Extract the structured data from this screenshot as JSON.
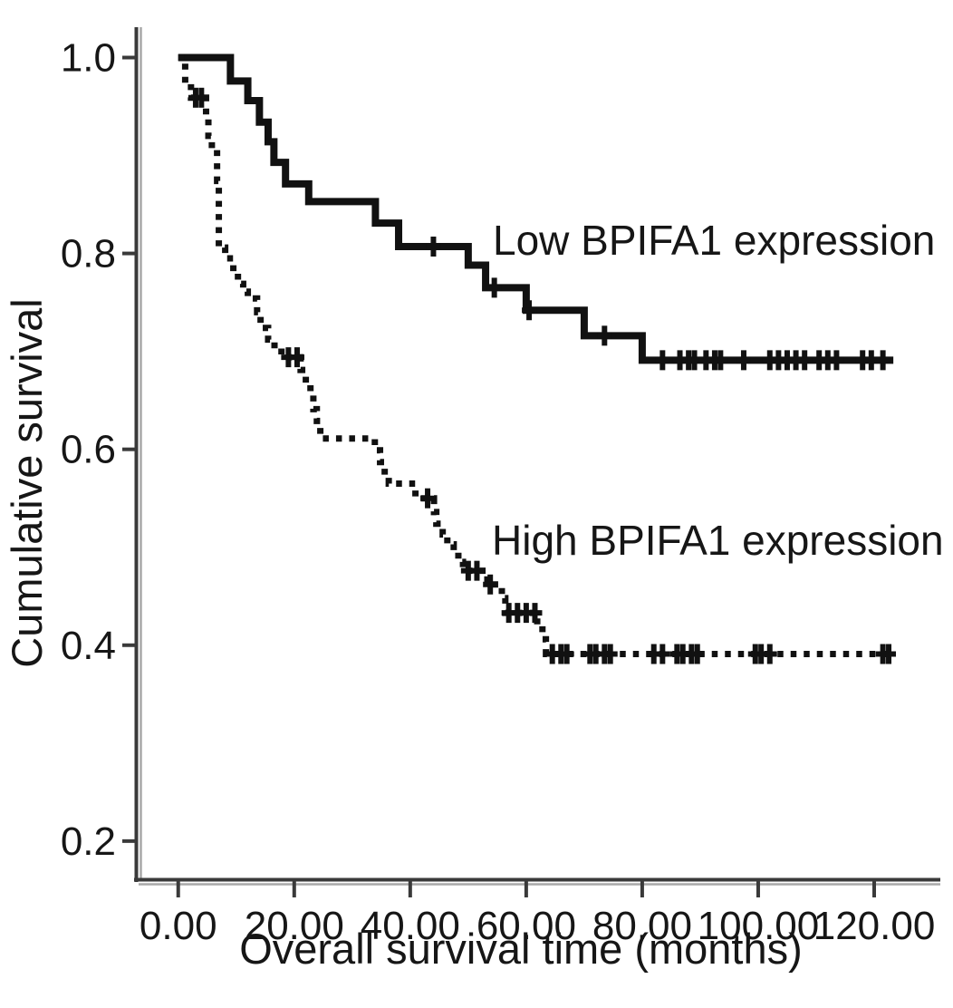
{
  "chart_data": {
    "type": "line",
    "subtype": "kaplan-meier-step-curves",
    "title": "",
    "xlabel": "Overall survival time (months)",
    "ylabel": "Cumulative survival",
    "x_ticks": [
      0,
      20,
      40,
      60,
      80,
      100,
      120
    ],
    "x_tick_labels": [
      "0.00",
      "20.00",
      "40.00",
      "60.00",
      "80.00",
      "100.00",
      "120.00"
    ],
    "y_ticks": [
      1.0,
      0.8,
      0.6,
      0.4,
      0.2
    ],
    "y_tick_labels": [
      "1.0",
      "0.8",
      "0.6",
      "0.4",
      "0.2"
    ],
    "xlim": [
      -7.3,
      131.4
    ],
    "ylim": [
      0.161,
      1.031
    ],
    "grid": false,
    "legend_position": "inline-annotations",
    "axis_color": "#3a3a3a",
    "axis_shadow_color": "#a8a8a8",
    "series": [
      {
        "name": "Low BPIFA1 expression",
        "line_style": "solid",
        "color": "#111111",
        "end_time": 123.3,
        "plateau_survival": 0.69,
        "steps": [
          [
            0,
            1.0
          ],
          [
            9,
            0.976
          ],
          [
            12,
            0.956
          ],
          [
            14,
            0.934
          ],
          [
            15.5,
            0.914
          ],
          [
            16.5,
            0.893
          ],
          [
            18.5,
            0.871
          ],
          [
            22.5,
            0.853
          ],
          [
            34,
            0.831
          ],
          [
            38,
            0.807
          ],
          [
            50,
            0.788
          ],
          [
            53,
            0.765
          ],
          [
            60,
            0.742
          ],
          [
            70,
            0.716
          ],
          [
            80,
            0.691
          ]
        ],
        "censor_marks": [
          [
            44,
            0.807
          ],
          [
            54.5,
            0.765
          ],
          [
            60.5,
            0.742
          ],
          [
            73.5,
            0.716
          ],
          [
            83.5,
            0.691
          ],
          [
            86.5,
            0.691
          ],
          [
            88,
            0.691
          ],
          [
            89,
            0.691
          ],
          [
            91,
            0.691
          ],
          [
            92.5,
            0.691
          ],
          [
            93.5,
            0.691
          ],
          [
            97.5,
            0.691
          ],
          [
            102,
            0.691
          ],
          [
            103.5,
            0.691
          ],
          [
            105,
            0.691
          ],
          [
            106.5,
            0.691
          ],
          [
            108,
            0.691
          ],
          [
            110.5,
            0.691
          ],
          [
            112,
            0.691
          ],
          [
            113.5,
            0.691
          ],
          [
            118,
            0.691
          ],
          [
            119.5,
            0.691
          ],
          [
            121.5,
            0.691
          ]
        ]
      },
      {
        "name": "High BPIFA1 expression",
        "line_style": "dotted",
        "color": "#111111",
        "end_time": 123.3,
        "plateau_survival": 0.39,
        "steps": [
          [
            0,
            1.0
          ],
          [
            1.2,
            0.974
          ],
          [
            2.2,
            0.959
          ],
          [
            4.8,
            0.939
          ],
          [
            5.2,
            0.92
          ],
          [
            5.8,
            0.906
          ],
          [
            6.7,
            0.874
          ],
          [
            7.0,
            0.806
          ],
          [
            8.1,
            0.795
          ],
          [
            9.5,
            0.781
          ],
          [
            10.3,
            0.769
          ],
          [
            11.2,
            0.761
          ],
          [
            12.0,
            0.754
          ],
          [
            13.6,
            0.74
          ],
          [
            14.2,
            0.724
          ],
          [
            15.5,
            0.712
          ],
          [
            16.6,
            0.703
          ],
          [
            17.8,
            0.694
          ],
          [
            21.1,
            0.681
          ],
          [
            22.0,
            0.667
          ],
          [
            22.8,
            0.655
          ],
          [
            23.3,
            0.641
          ],
          [
            23.9,
            0.629
          ],
          [
            24.5,
            0.611
          ],
          [
            33.9,
            0.599
          ],
          [
            34.8,
            0.587
          ],
          [
            35.6,
            0.573
          ],
          [
            36.3,
            0.565
          ],
          [
            40.9,
            0.55
          ],
          [
            44.1,
            0.536
          ],
          [
            44.5,
            0.524
          ],
          [
            45.6,
            0.513
          ],
          [
            46.4,
            0.503
          ],
          [
            47.5,
            0.496
          ],
          [
            48.3,
            0.485
          ],
          [
            49.1,
            0.476
          ],
          [
            53.3,
            0.462
          ],
          [
            55.8,
            0.448
          ],
          [
            56.4,
            0.433
          ],
          [
            61.9,
            0.42
          ],
          [
            62.8,
            0.406
          ],
          [
            63.4,
            0.391
          ]
        ],
        "censor_marks": [
          [
            3,
            0.959
          ],
          [
            4,
            0.959
          ],
          [
            19,
            0.694
          ],
          [
            20.5,
            0.694
          ],
          [
            43,
            0.55
          ],
          [
            50,
            0.476
          ],
          [
            51.5,
            0.476
          ],
          [
            53.8,
            0.462
          ],
          [
            57,
            0.433
          ],
          [
            58.5,
            0.433
          ],
          [
            60,
            0.433
          ],
          [
            61.5,
            0.433
          ],
          [
            64.5,
            0.391
          ],
          [
            66,
            0.391
          ],
          [
            67,
            0.391
          ],
          [
            71,
            0.391
          ],
          [
            72,
            0.391
          ],
          [
            73.5,
            0.391
          ],
          [
            74.5,
            0.391
          ],
          [
            82,
            0.391
          ],
          [
            83.5,
            0.391
          ],
          [
            86,
            0.391
          ],
          [
            87,
            0.391
          ],
          [
            88.5,
            0.391
          ],
          [
            89.5,
            0.391
          ],
          [
            99.5,
            0.391
          ],
          [
            100.5,
            0.391
          ],
          [
            102,
            0.391
          ],
          [
            121.5,
            0.391
          ],
          [
            122.5,
            0.391
          ]
        ]
      }
    ],
    "annotations": [
      {
        "text": "Low BPIFA1 expression",
        "attached_series": 0
      },
      {
        "text": "High BPIFA1 expression",
        "attached_series": 1
      }
    ]
  }
}
